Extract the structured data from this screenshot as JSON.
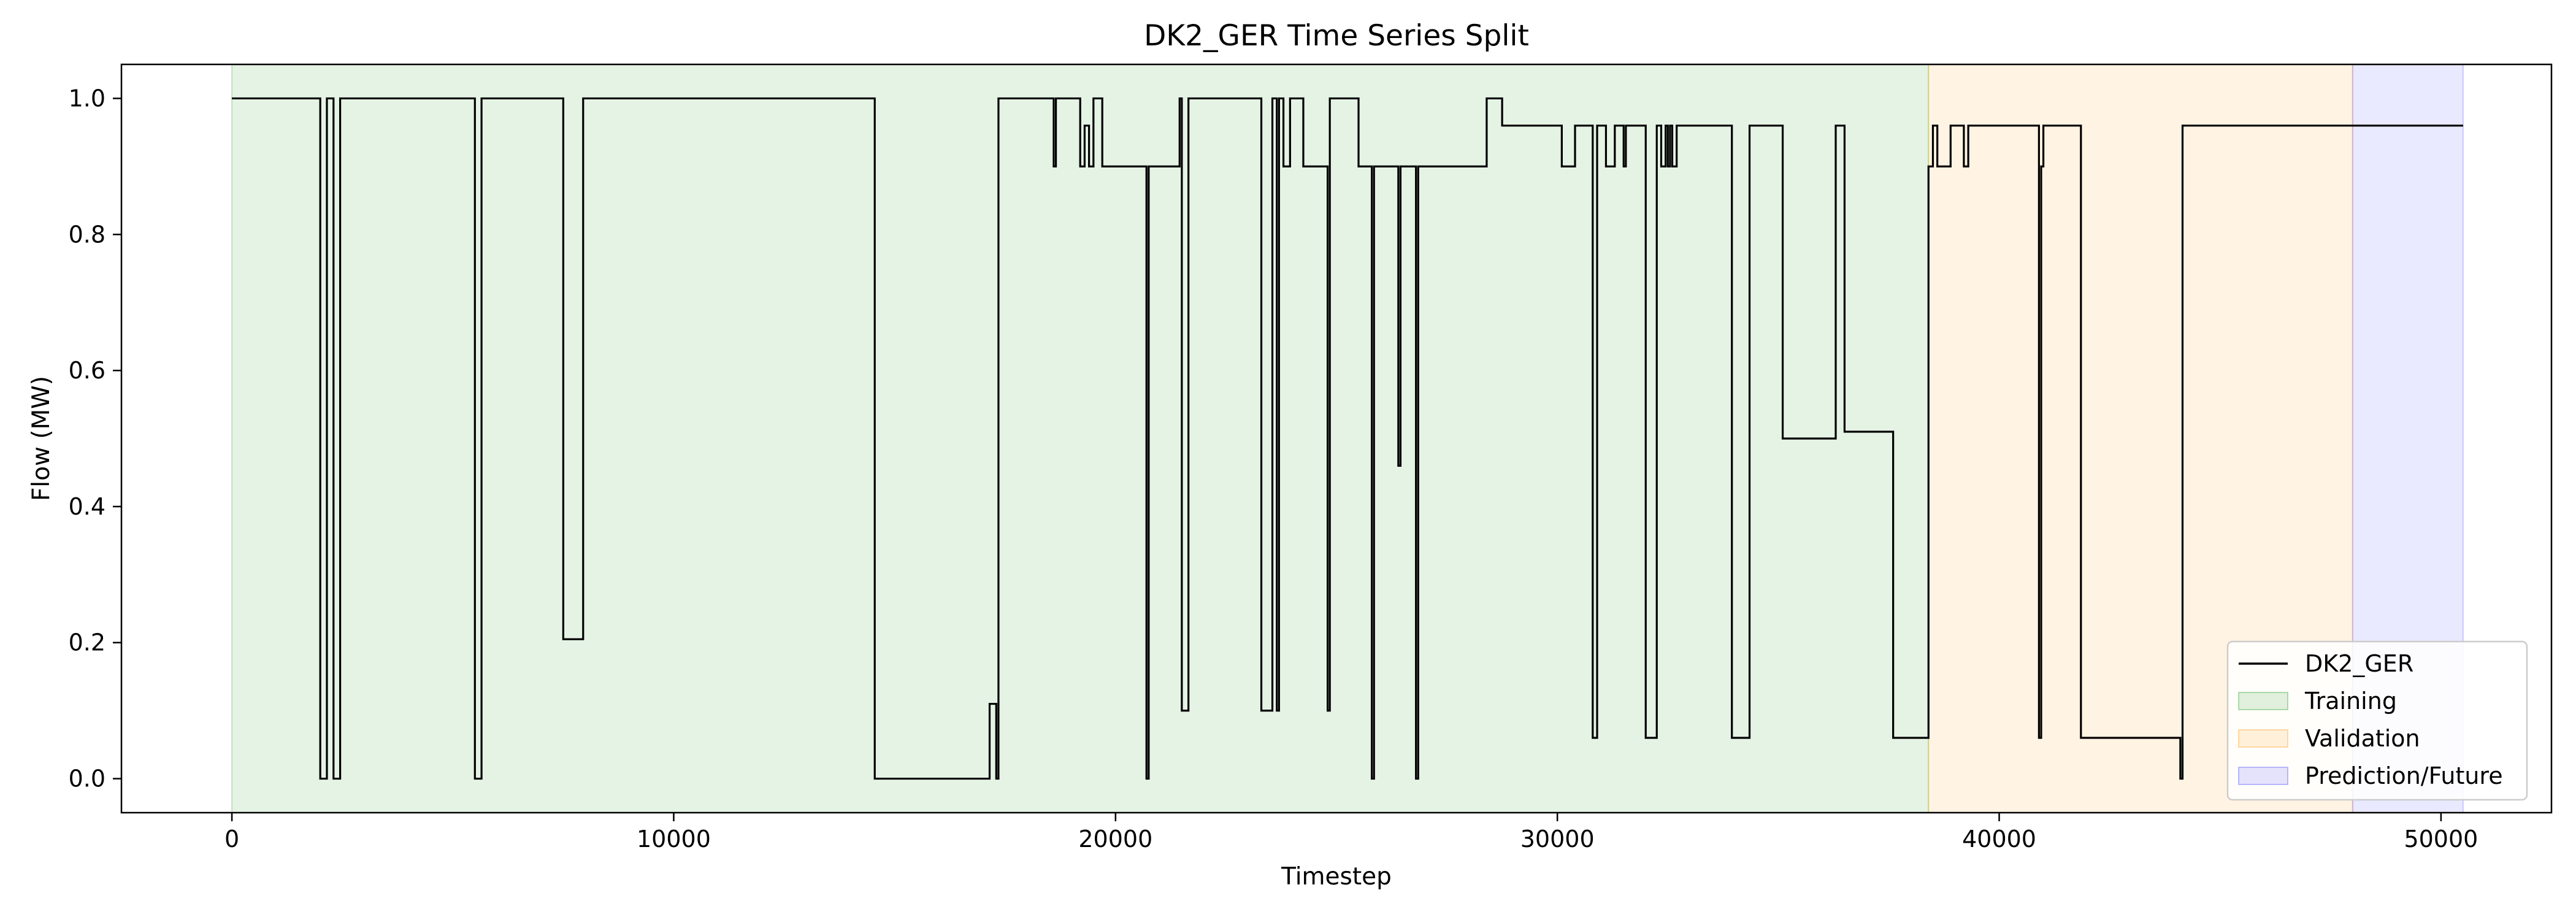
{
  "chart_data": {
    "type": "line",
    "title": "DK2_GER Time Series Split",
    "xlabel": "Timestep",
    "ylabel": "Flow (MW)",
    "xlim": [
      -2500,
      52500
    ],
    "ylim": [
      -0.05,
      1.05
    ],
    "xticks": [
      0,
      10000,
      20000,
      30000,
      40000,
      50000
    ],
    "xtick_labels": [
      "0",
      "10000",
      "20000",
      "30000",
      "40000",
      "50000"
    ],
    "yticks": [
      0.0,
      0.2,
      0.4,
      0.6,
      0.8,
      1.0
    ],
    "ytick_labels": [
      "0.0",
      "0.2",
      "0.4",
      "0.6",
      "0.8",
      "1.0"
    ],
    "grid": false,
    "legend_position": "lower-right",
    "regions": [
      {
        "name": "Training",
        "x_start": 0,
        "x_end": 38400,
        "color": "#2ca02c"
      },
      {
        "name": "Validation",
        "x_start": 38400,
        "x_end": 48000,
        "color": "#ff9f1c"
      },
      {
        "name": "Prediction/Future",
        "x_start": 48000,
        "x_end": 50500,
        "color": "#4b4bff"
      }
    ],
    "series": [
      {
        "name": "DK2_GER",
        "color": "#000000",
        "step": "post",
        "points": [
          [
            0,
            1.0
          ],
          [
            2000,
            0.0
          ],
          [
            2150,
            1.0
          ],
          [
            2300,
            0.0
          ],
          [
            2450,
            1.0
          ],
          [
            5500,
            0.0
          ],
          [
            5650,
            1.0
          ],
          [
            7500,
            0.205
          ],
          [
            7950,
            1.0
          ],
          [
            14550,
            0.0
          ],
          [
            17150,
            0.11
          ],
          [
            17300,
            0.0
          ],
          [
            17350,
            1.0
          ],
          [
            18600,
            0.9
          ],
          [
            18650,
            1.0
          ],
          [
            19200,
            0.9
          ],
          [
            19300,
            0.96
          ],
          [
            19400,
            0.9
          ],
          [
            19500,
            1.0
          ],
          [
            19700,
            0.9
          ],
          [
            20700,
            0.0
          ],
          [
            20750,
            0.9
          ],
          [
            21450,
            1.0
          ],
          [
            21500,
            0.1
          ],
          [
            21650,
            1.0
          ],
          [
            23300,
            0.1
          ],
          [
            23550,
            1.0
          ],
          [
            23650,
            0.1
          ],
          [
            23700,
            1.0
          ],
          [
            23800,
            0.9
          ],
          [
            23950,
            1.0
          ],
          [
            24250,
            0.9
          ],
          [
            24800,
            0.1
          ],
          [
            24850,
            1.0
          ],
          [
            25500,
            0.9
          ],
          [
            25800,
            0.0
          ],
          [
            25850,
            0.9
          ],
          [
            26400,
            0.46
          ],
          [
            26450,
            0.9
          ],
          [
            26800,
            0.0
          ],
          [
            26850,
            0.9
          ],
          [
            28400,
            1.0
          ],
          [
            28750,
            0.96
          ],
          [
            30100,
            0.9
          ],
          [
            30400,
            0.96
          ],
          [
            30800,
            0.06
          ],
          [
            30900,
            0.96
          ],
          [
            31100,
            0.9
          ],
          [
            31300,
            0.96
          ],
          [
            31500,
            0.9
          ],
          [
            31550,
            0.96
          ],
          [
            32000,
            0.06
          ],
          [
            32250,
            0.96
          ],
          [
            32350,
            0.9
          ],
          [
            32450,
            0.96
          ],
          [
            32500,
            0.9
          ],
          [
            32550,
            0.96
          ],
          [
            32600,
            0.9
          ],
          [
            32700,
            0.96
          ],
          [
            33950,
            0.06
          ],
          [
            34350,
            0.96
          ],
          [
            35100,
            0.5
          ],
          [
            36300,
            0.96
          ],
          [
            36500,
            0.51
          ],
          [
            37600,
            0.06
          ],
          [
            38400,
            0.9
          ],
          [
            38500,
            0.96
          ],
          [
            38600,
            0.9
          ],
          [
            38900,
            0.96
          ],
          [
            39200,
            0.9
          ],
          [
            39300,
            0.96
          ],
          [
            40900,
            0.06
          ],
          [
            40950,
            0.9
          ],
          [
            41000,
            0.96
          ],
          [
            41850,
            0.06
          ],
          [
            44100,
            0.0
          ],
          [
            44150,
            0.96
          ],
          [
            50500,
            0.96
          ]
        ]
      }
    ]
  }
}
